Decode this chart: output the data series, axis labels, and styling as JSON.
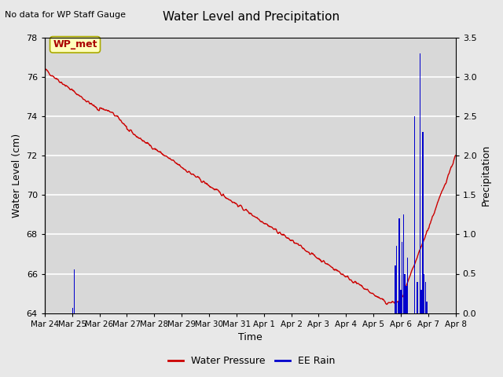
{
  "title": "Water Level and Precipitation",
  "subtitle": "No data for WP Staff Gauge",
  "xlabel": "Time",
  "ylabel_left": "Water Level (cm)",
  "ylabel_right": "Precipitation",
  "annotation": "WP_met",
  "ylim_left": [
    64,
    78
  ],
  "ylim_right": [
    0.0,
    3.5
  ],
  "yticks_left": [
    64,
    66,
    68,
    70,
    72,
    74,
    76,
    78
  ],
  "yticks_right": [
    0.0,
    0.5,
    1.0,
    1.5,
    2.0,
    2.5,
    3.0,
    3.5
  ],
  "water_pressure_color": "#cc0000",
  "rain_color": "#0000cc",
  "fig_bg_color": "#e8e8e8",
  "plot_bg_color": "#d8d8d8",
  "grid_color": "#f0f0f0",
  "legend_items": [
    "Water Pressure",
    "EE Rain"
  ]
}
